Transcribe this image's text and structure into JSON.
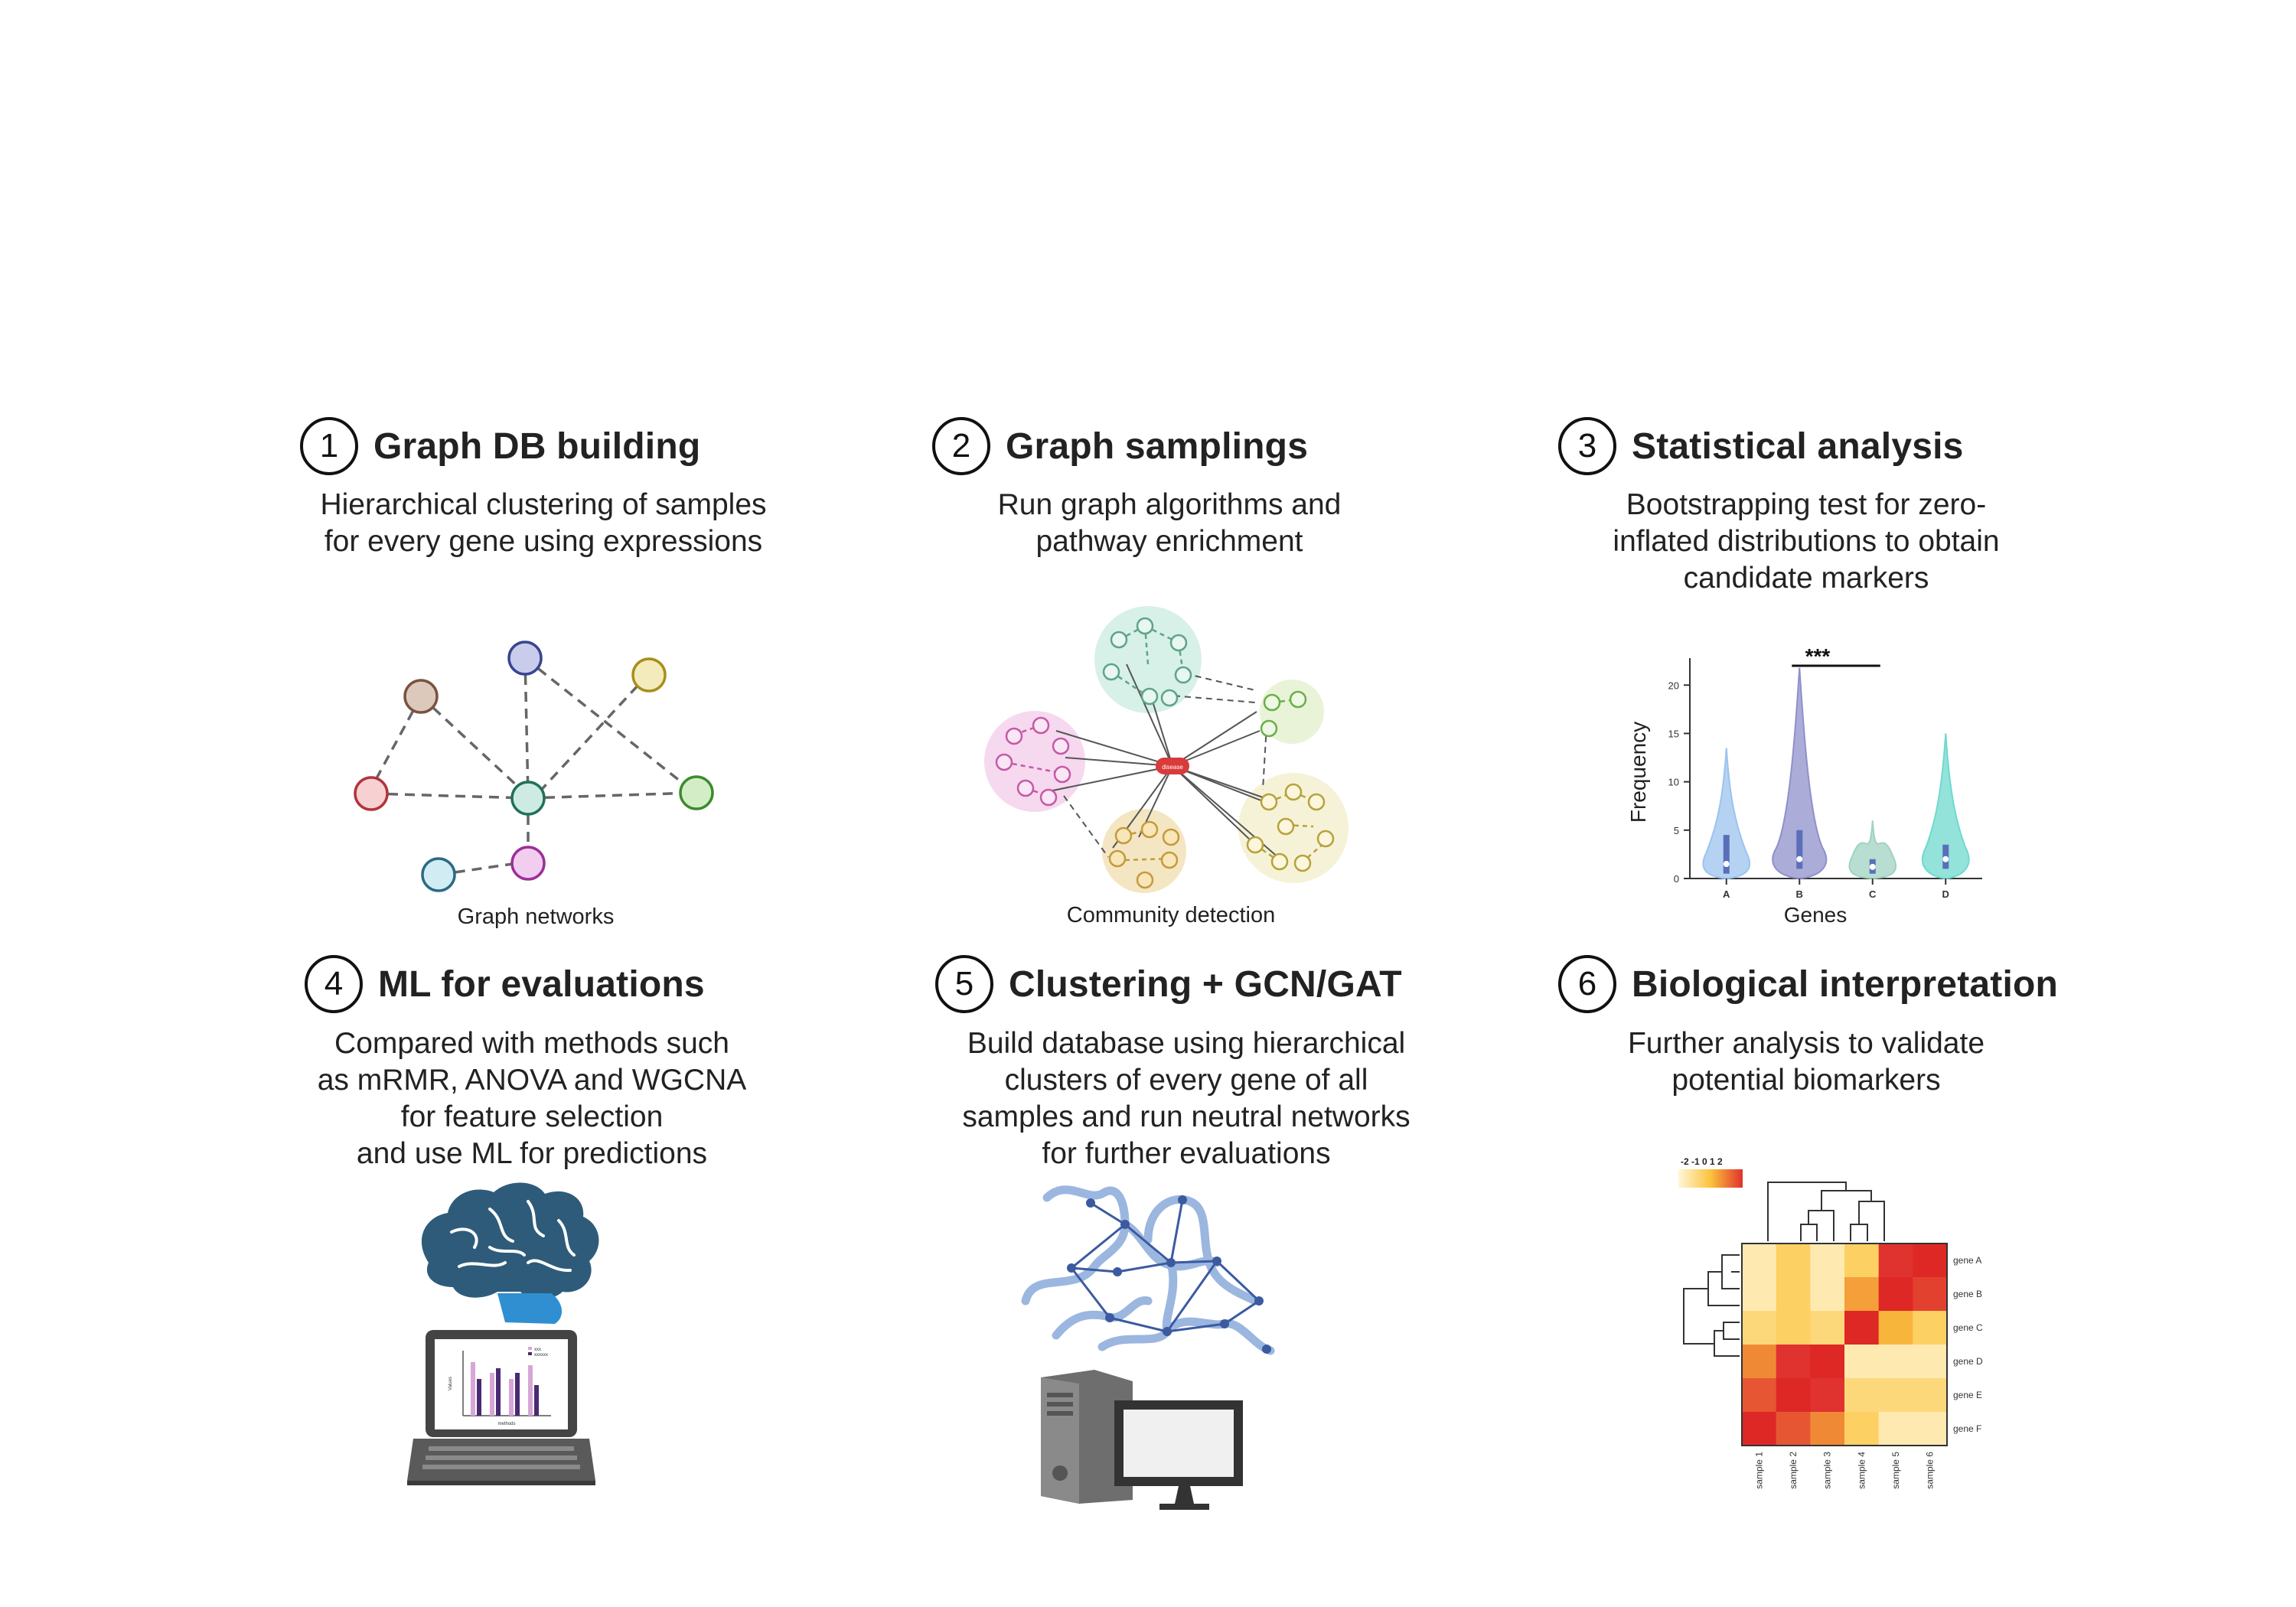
{
  "steps": [
    {
      "number": "1",
      "title": "Graph DB building",
      "description": [
        "Hierarchical clustering of samples",
        "for every gene using expressions"
      ],
      "caption": "Graph networks"
    },
    {
      "number": "2",
      "title": "Graph samplings",
      "description": [
        "Run graph algorithms and",
        "pathway enrichment"
      ],
      "caption": "Community detection"
    },
    {
      "number": "3",
      "title": "Statistical analysis",
      "description": [
        "Bootstrapping test for zero-",
        "inflated distributions to obtain",
        "candidate markers"
      ],
      "caption": ""
    },
    {
      "number": "4",
      "title": "ML for evaluations",
      "description": [
        "Compared with methods such",
        "as mRMR, ANOVA and WGCNA",
        "for feature selection",
        "and use ML for predictions"
      ],
      "caption": ""
    },
    {
      "number": "5",
      "title": "Clustering + GCN/GAT",
      "description": [
        "Build database using hierarchical",
        "clusters of every gene of all",
        "samples and run neutral networks",
        "for further evaluations"
      ],
      "caption": ""
    },
    {
      "number": "6",
      "title": "Biological interpretation",
      "description": [
        "Further analysis to validate",
        "potential biomarkers"
      ],
      "caption": ""
    }
  ],
  "community": {
    "center_label": "disease"
  },
  "violin": {
    "type": "violin",
    "categories": [
      "A",
      "B",
      "C",
      "D"
    ],
    "ylabel": "Frequency",
    "xlabel": "Genes",
    "ylim": [
      0,
      22
    ],
    "yticks": [
      0,
      5,
      10,
      15,
      20
    ],
    "series": [
      {
        "name": "A",
        "max": 13.5,
        "median": 1.5,
        "q1": 0.5,
        "q3": 4.5,
        "color": "#9cc3ef"
      },
      {
        "name": "B",
        "max": 21.8,
        "median": 2,
        "q1": 1,
        "q3": 5,
        "color": "#8f90cb"
      },
      {
        "name": "C",
        "max": 6,
        "median": 1.2,
        "q1": 0.5,
        "q3": 2,
        "color": "#9fd3c0"
      },
      {
        "name": "D",
        "max": 15,
        "median": 2,
        "q1": 1,
        "q3": 3.5,
        "color": "#6fd9cf"
      }
    ],
    "significance": "***"
  },
  "heatmap": {
    "scale_label": "-2 -1 0 1 2",
    "rows": [
      "gene A",
      "gene B",
      "gene C",
      "gene D",
      "gene E",
      "gene F"
    ],
    "cols": [
      "sample 1",
      "sample 2",
      "sample 3",
      "sample 4",
      "sample 5",
      "sample 6"
    ],
    "values": [
      [
        -1.5,
        -0.5,
        -1.5,
        -0.5,
        2.0,
        2.2
      ],
      [
        -1.5,
        -0.5,
        -1.5,
        0.5,
        2.2,
        1.8
      ],
      [
        -0.8,
        -0.5,
        -0.8,
        2.2,
        0.2,
        -0.5
      ],
      [
        0.8,
        2.0,
        2.2,
        -1.5,
        -1.5,
        -1.5
      ],
      [
        1.5,
        2.2,
        2.0,
        -0.8,
        -0.8,
        -0.8
      ],
      [
        2.2,
        1.5,
        0.8,
        -0.5,
        -1.5,
        -1.5
      ]
    ]
  },
  "laptop_chart": {
    "legend": [
      "xxx",
      "xxxxxx"
    ],
    "ylabel": "Values",
    "xlabel": "methods"
  }
}
